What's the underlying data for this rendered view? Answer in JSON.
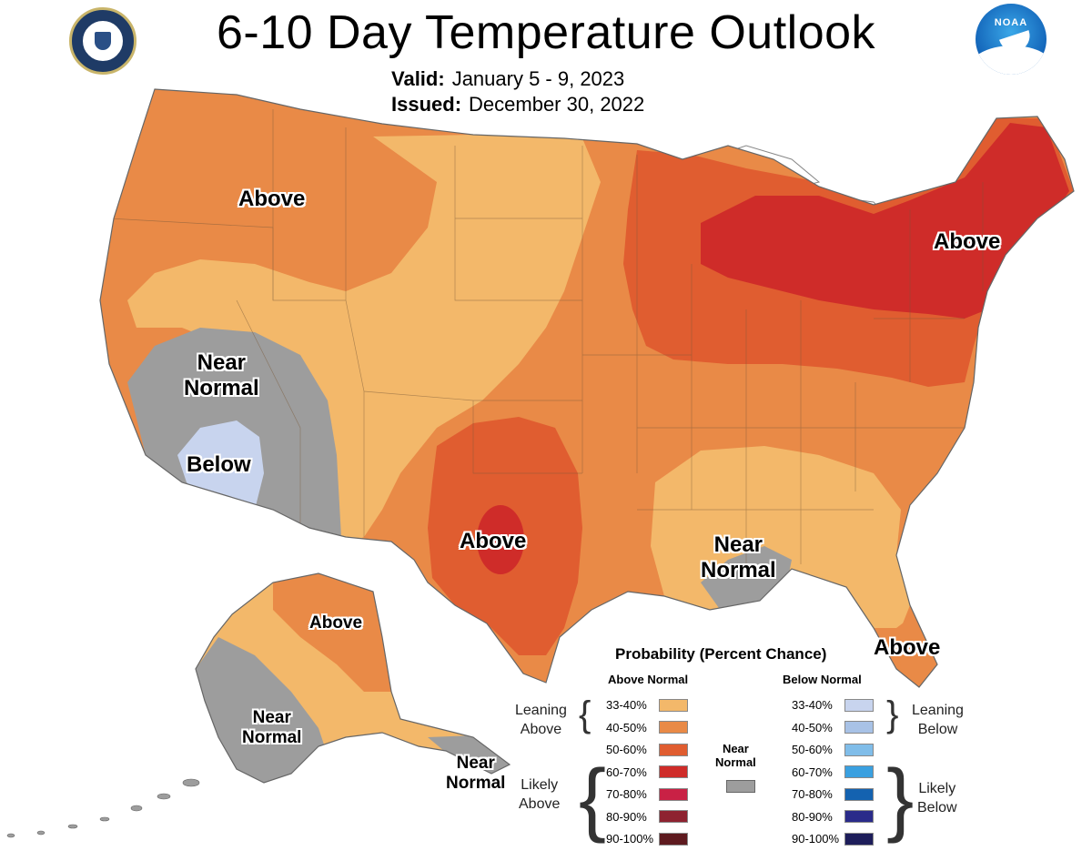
{
  "header": {
    "title": "6-10 Day Temperature Outlook",
    "valid_label": "Valid:",
    "valid_value": "January 5 - 9, 2023",
    "issued_label": "Issued:",
    "issued_value": "December 30, 2022",
    "left_logo": "Department of Commerce seal",
    "right_logo_text": "NOAA"
  },
  "map_labels": {
    "northwest": "Above",
    "northeast": "Above",
    "southwest_near_line1": "Near",
    "southwest_near_line2": "Normal",
    "southwest_below": "Below",
    "texas": "Above",
    "gulf_near_line1": "Near",
    "gulf_near_line2": "Normal",
    "florida": "Above",
    "alaska_above": "Above",
    "alaska_near_line1": "Near",
    "alaska_near_line2": "Normal",
    "aleutian_near_line1": "Near",
    "aleutian_near_line2": "Normal"
  },
  "legend": {
    "title": "Probability (Percent Chance)",
    "above_header": "Above Normal",
    "below_header": "Below Normal",
    "near_line1": "Near",
    "near_line2": "Normal",
    "leaning_above_line1": "Leaning",
    "leaning_above_line2": "Above",
    "likely_above_line1": "Likely",
    "likely_above_line2": "Above",
    "leaning_below_line1": "Leaning",
    "leaning_below_line2": "Below",
    "likely_below_line1": "Likely",
    "likely_below_line2": "Below",
    "ranges": [
      "33-40%",
      "40-50%",
      "50-60%",
      "60-70%",
      "70-80%",
      "80-90%",
      "90-100%"
    ],
    "above_colors": [
      "#f3b86a",
      "#e98a47",
      "#e05d30",
      "#cf2c29",
      "#c92145",
      "#8e2230",
      "#5e1a1f"
    ],
    "below_colors": [
      "#c8d4ee",
      "#a8c2e6",
      "#80bde9",
      "#3aa0e0",
      "#1462b0",
      "#2a2b8a",
      "#1d1d5a"
    ],
    "near_color": "#9d9d9d"
  }
}
